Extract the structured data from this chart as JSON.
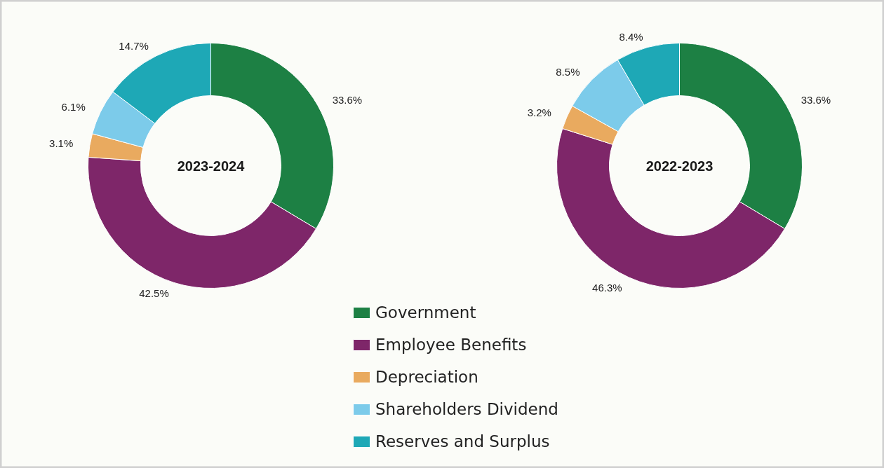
{
  "chart_data": [
    {
      "type": "donut",
      "title": "2023-2024",
      "categories": [
        "Government",
        "Employee Benefits",
        "Depreciation",
        "Shareholders Dividend",
        "Reserves and Surplus"
      ],
      "values": [
        33.6,
        42.5,
        3.1,
        6.1,
        14.7
      ],
      "value_labels": [
        "33.6%",
        "42.5%",
        "3.1%",
        "6.1%",
        "14.7%"
      ],
      "colors": [
        "#1d8044",
        "#7e2669",
        "#e9aa5f",
        "#7ccbea",
        "#1ea8b6"
      ],
      "legend": "bottom"
    },
    {
      "type": "donut",
      "title": "2022-2023",
      "categories": [
        null,
        null,
        null,
        null,
        null
      ],
      "values": [
        33.6,
        46.3,
        3.2,
        8.5,
        8.4
      ],
      "value_labels": [
        "33.6%",
        "46.3%",
        "3.2%",
        "8.5%",
        "8.4%"
      ],
      "colors": [
        "#1d8044",
        "#7e2669",
        "#e9aa5f",
        "#7ccbea",
        "#1ea8b6"
      ]
    }
  ]
}
